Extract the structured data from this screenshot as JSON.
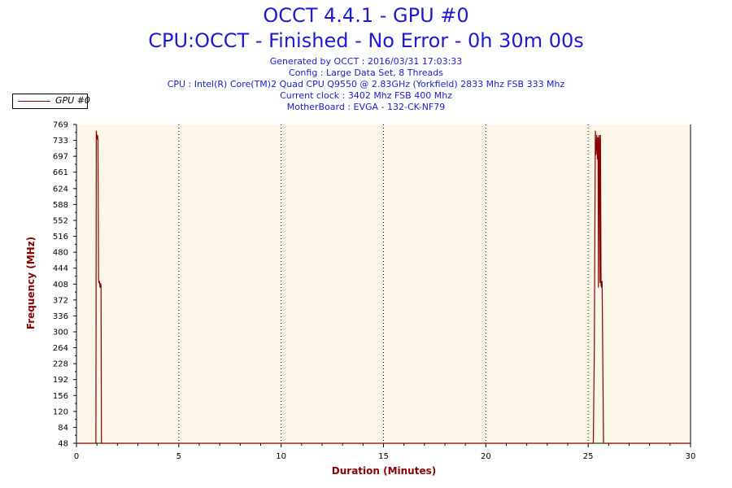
{
  "header": {
    "title": "OCCT 4.4.1 - GPU #0",
    "subtitle": "CPU:OCCT - Finished - No Error - 0h 30m 00s",
    "info_lines": [
      "Generated by OCCT : 2016/03/31 17:03:33",
      "Config : Large Data Set, 8 Threads",
      "CPU : Intel(R) Core(TM)2 Quad CPU Q9550 @ 2.83GHz (Yorkfield) 2833 Mhz FSB 333 Mhz",
      "Current clock : 3402 Mhz FSB 400 Mhz",
      "MotherBoard : EVGA - 132-CK-NF79"
    ]
  },
  "colors": {
    "title": "#1a1ad8",
    "series": "#8b0000",
    "plot_background": "#fdf7e8",
    "axis_label": "#8b0000"
  },
  "chart_data": {
    "type": "line",
    "xlabel": "Duration (Minutes)",
    "ylabel": "Frequency (MHz)",
    "xlim": [
      0,
      30
    ],
    "ylim": [
      48,
      769
    ],
    "x_ticks": [
      0,
      5,
      10,
      15,
      20,
      25,
      30
    ],
    "y_ticks": [
      48,
      84,
      120,
      156,
      192,
      228,
      264,
      300,
      336,
      372,
      408,
      444,
      480,
      516,
      552,
      588,
      624,
      661,
      697,
      733,
      769
    ],
    "grid": "vertical dotted at major x ticks",
    "legend": {
      "position": "top-left",
      "entries": [
        "GPU #0"
      ]
    },
    "series": [
      {
        "name": "GPU #0",
        "x": [
          0,
          0.95,
          0.97,
          1.0,
          1.03,
          1.05,
          1.08,
          1.1,
          1.13,
          1.15,
          1.18,
          1.2,
          1.22,
          1.25,
          25.2,
          25.25,
          25.3,
          25.35,
          25.38,
          25.42,
          25.45,
          25.48,
          25.5,
          25.53,
          25.55,
          25.58,
          25.6,
          25.63,
          25.65,
          25.68,
          25.72,
          25.75,
          25.8,
          25.85,
          30
        ],
        "values": [
          48,
          48,
          755,
          735,
          745,
          735,
          420,
          410,
          415,
          400,
          410,
          405,
          48,
          48,
          48,
          48,
          260,
          755,
          700,
          745,
          690,
          740,
          400,
          745,
          735,
          410,
          745,
          405,
          400,
          415,
          200,
          48,
          48,
          48,
          48
        ]
      }
    ]
  }
}
